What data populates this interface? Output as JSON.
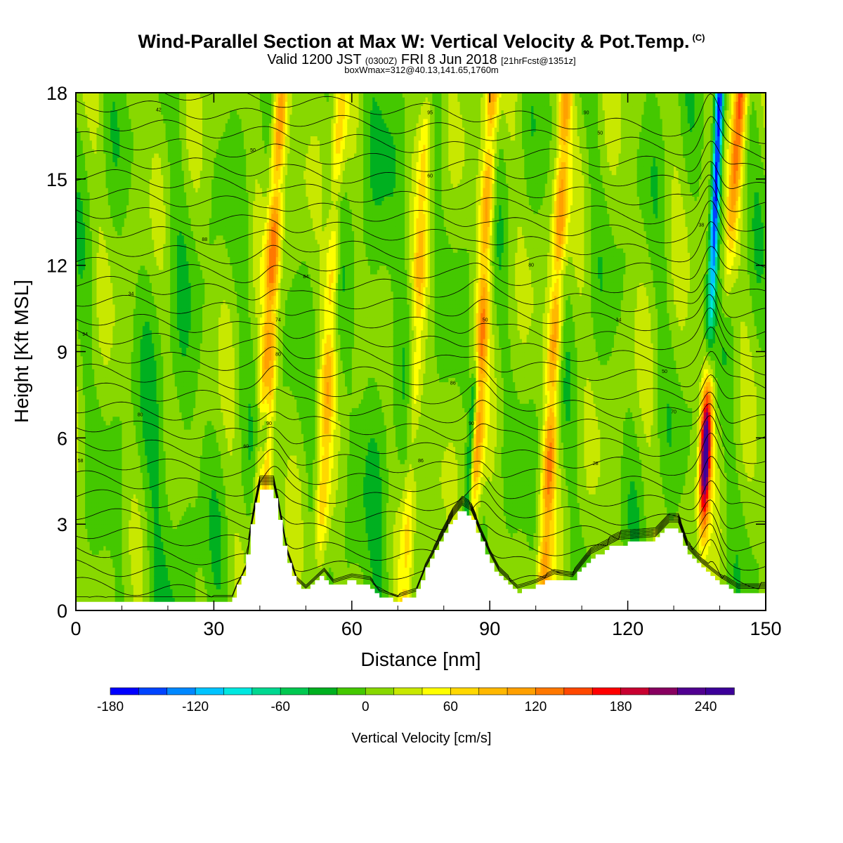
{
  "title": {
    "main": "Wind-Parallel Section at Max W: Vertical Velocity & Pot.Temp.",
    "copyright": "(C)",
    "valid_prefix": "Valid 1200 JST",
    "valid_utc": "(0300Z)",
    "valid_date": "FRI 8 Jun 2018",
    "forecast_info": "[21hrFcst@1351z]",
    "box_info": "boxWmax=312@40.13,141.65,1760m"
  },
  "chart_data": {
    "type": "heatmap",
    "xlabel": "Distance [nm]",
    "ylabel": "Height [Kft MSL]",
    "xlim": [
      0,
      150
    ],
    "ylim": [
      0,
      18
    ],
    "x_ticks": [
      "0",
      "30",
      "60",
      "90",
      "120",
      "150"
    ],
    "y_ticks": [
      "0",
      "3",
      "6",
      "9",
      "12",
      "15",
      "18"
    ],
    "colorbar": {
      "label": "Vertical Velocity [cm/s]",
      "ticks": [
        "-180",
        "-120",
        "-60",
        "0",
        "60",
        "120",
        "180",
        "240"
      ],
      "min": -180,
      "max": 260,
      "step": 20,
      "colors": [
        "#0000ff",
        "#0044ff",
        "#0088ff",
        "#00c4ff",
        "#00e8e0",
        "#00d890",
        "#00c850",
        "#00b020",
        "#44c800",
        "#88d800",
        "#c8e800",
        "#ffff00",
        "#ffd800",
        "#ffb800",
        "#ffa000",
        "#ff7800",
        "#ff4800",
        "#ff0000",
        "#c80030",
        "#880060",
        "#500090",
        "#3c0099"
      ]
    },
    "updraft_bands": [
      {
        "center_x": 42,
        "w_max": 130
      },
      {
        "center_x": 55,
        "w_max": 70
      },
      {
        "center_x": 74,
        "w_max": 60
      },
      {
        "center_x": 88,
        "w_max": 110
      },
      {
        "center_x": 104,
        "w_max": 110
      },
      {
        "center_x": 137,
        "w_max": 250
      },
      {
        "center_x": 144,
        "w_max": 140
      }
    ],
    "downdraft_bands": [
      {
        "center_x": 41,
        "w_min": -70
      },
      {
        "center_x": 86,
        "w_min": -80
      },
      {
        "center_x": 139,
        "w_min": -180
      }
    ],
    "terrain_kft": [
      [
        0,
        0.3
      ],
      [
        6,
        0.3
      ],
      [
        34,
        0.3
      ],
      [
        35,
        0.7
      ],
      [
        37,
        1.3
      ],
      [
        38,
        2.6
      ],
      [
        39,
        3.4
      ],
      [
        40,
        4.2
      ],
      [
        43,
        4.2
      ],
      [
        44,
        3.5
      ],
      [
        46,
        1.8
      ],
      [
        48,
        0.9
      ],
      [
        50,
        0.6
      ],
      [
        54,
        1.2
      ],
      [
        56,
        0.8
      ],
      [
        60,
        1.0
      ],
      [
        64,
        0.9
      ],
      [
        66,
        0.5
      ],
      [
        70,
        0.3
      ],
      [
        74,
        0.5
      ],
      [
        76,
        1.3
      ],
      [
        79,
        2.2
      ],
      [
        82,
        3.1
      ],
      [
        84,
        3.5
      ],
      [
        86,
        3.3
      ],
      [
        88,
        2.5
      ],
      [
        90,
        1.8
      ],
      [
        92,
        1.2
      ],
      [
        94,
        0.9
      ],
      [
        96,
        0.6
      ],
      [
        100,
        0.8
      ],
      [
        104,
        1.1
      ],
      [
        108,
        1.0
      ],
      [
        112,
        1.8
      ],
      [
        118,
        2.3
      ],
      [
        126,
        2.4
      ],
      [
        129,
        2.9
      ],
      [
        131,
        2.9
      ],
      [
        133,
        2.0
      ],
      [
        136,
        1.5
      ],
      [
        140,
        1.0
      ],
      [
        144,
        0.6
      ],
      [
        148,
        0.6
      ],
      [
        150,
        0.6
      ]
    ],
    "theta_contours": {
      "count": 30,
      "labels": [
        {
          "text": "42",
          "x": 18,
          "y": 17.4
        },
        {
          "text": "50",
          "x": 38.5,
          "y": 16.0
        },
        {
          "text": "95",
          "x": 77,
          "y": 17.3
        },
        {
          "text": "90",
          "x": 111,
          "y": 17.3
        },
        {
          "text": "50",
          "x": 114,
          "y": 16.6
        },
        {
          "text": "60",
          "x": 77,
          "y": 15.1
        },
        {
          "text": "38",
          "x": 136,
          "y": 13.4
        },
        {
          "text": "88",
          "x": 28,
          "y": 12.9
        },
        {
          "text": "80",
          "x": 99,
          "y": 12.0
        },
        {
          "text": "84",
          "x": 50,
          "y": 11.6
        },
        {
          "text": "34",
          "x": 12,
          "y": 11.0
        },
        {
          "text": "74",
          "x": 44,
          "y": 10.1
        },
        {
          "text": "50",
          "x": 89,
          "y": 10.1
        },
        {
          "text": "34",
          "x": 118,
          "y": 10.1
        },
        {
          "text": "94",
          "x": 2,
          "y": 9.6
        },
        {
          "text": "80",
          "x": 44,
          "y": 8.9
        },
        {
          "text": "50",
          "x": 128,
          "y": 8.3
        },
        {
          "text": "86",
          "x": 82,
          "y": 7.9
        },
        {
          "text": "80",
          "x": 14,
          "y": 6.8
        },
        {
          "text": "70",
          "x": 130,
          "y": 6.9
        },
        {
          "text": "90",
          "x": 42,
          "y": 6.5
        },
        {
          "text": "90",
          "x": 86,
          "y": 6.5
        },
        {
          "text": "60",
          "x": 37,
          "y": 5.7
        },
        {
          "text": "58",
          "x": 1,
          "y": 5.2
        },
        {
          "text": "86",
          "x": 75,
          "y": 5.2
        },
        {
          "text": "28",
          "x": 113,
          "y": 5.1
        }
      ]
    }
  }
}
